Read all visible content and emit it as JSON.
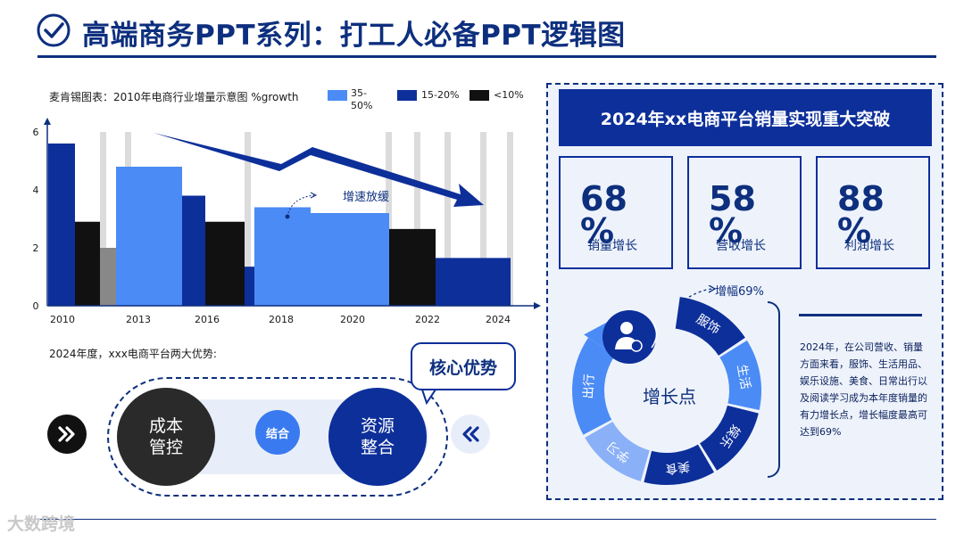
{
  "header": {
    "title": "高端商务PPT系列：打工人必备PPT逻辑图"
  },
  "chart_section": {
    "legend_title": "麦肯锡图表：2010年电商行业增量示意图 %growth",
    "legend": [
      {
        "label": "35-\n50%",
        "color": "#4b8bf5"
      },
      {
        "label": "15-20%",
        "color": "#0d2f9a"
      },
      {
        "label": "<10%",
        "color": "#111111"
      }
    ],
    "trend_annotation": "增速放缓"
  },
  "chart_data": {
    "type": "bar",
    "title": "麦肯锡图表：2010年电商行业增量示意图 %growth",
    "xlabel": "",
    "ylabel": "",
    "ylim": [
      0,
      6
    ],
    "yticks": [
      "0",
      "2",
      "4",
      "6"
    ],
    "x_ticks": [
      "2010",
      "2013",
      "2016",
      "2018",
      "2020",
      "2022",
      "2024"
    ],
    "series": [
      {
        "name": "15-20%",
        "color": "#0d2f9a",
        "bars": [
          {
            "label": "2010",
            "value": 5.6
          },
          {
            "label": "2015",
            "value": 3.8
          },
          {
            "label": "2017",
            "value": 1.35
          },
          {
            "label": "2023",
            "value": 1.65
          }
        ]
      },
      {
        "name": "35-\n50%",
        "color": "#4b8bf5",
        "bars": [
          {
            "label": "2013",
            "value": 4.8
          },
          {
            "label": "2018",
            "value": 3.4
          },
          {
            "label": "2020",
            "value": 3.2
          }
        ]
      },
      {
        "name": "<10%",
        "color": "#111111",
        "bars": [
          {
            "label": "2011",
            "value": 2.9
          },
          {
            "label": "2016",
            "value": 2.9
          },
          {
            "label": "2022",
            "value": 2.65
          }
        ]
      },
      {
        "name": "",
        "color": "#888888",
        "bars": [
          {
            "label": "2012",
            "value": 2.0
          }
        ]
      }
    ]
  },
  "advantages": {
    "title": "2024年度，xxx电商平台两大优势:",
    "left": "成本\n管控",
    "middle": "结合",
    "right": "资源\n整合",
    "bubble": "核心优势"
  },
  "panel": {
    "heading": "2024年xx电商平台销量实现重大突破",
    "stats": [
      {
        "value": "68\n%",
        "label": "销量增长"
      },
      {
        "value": "58\n%",
        "label": "营收增长"
      },
      {
        "value": "88\n%",
        "label": "利润增长"
      }
    ],
    "growth": "增幅69%",
    "center_label": "增长点",
    "segments": [
      "服饰",
      "生活",
      "娱乐",
      "美食",
      "学习",
      "出行"
    ],
    "description": "2024年，在公司营收、销量方面来看，服饰、生活用品、娱乐设施、美食、日常出行以及阅读学习成为本年度销量的有力增长点，增长幅度最高可达到69%"
  },
  "watermark": "大数跨境"
}
